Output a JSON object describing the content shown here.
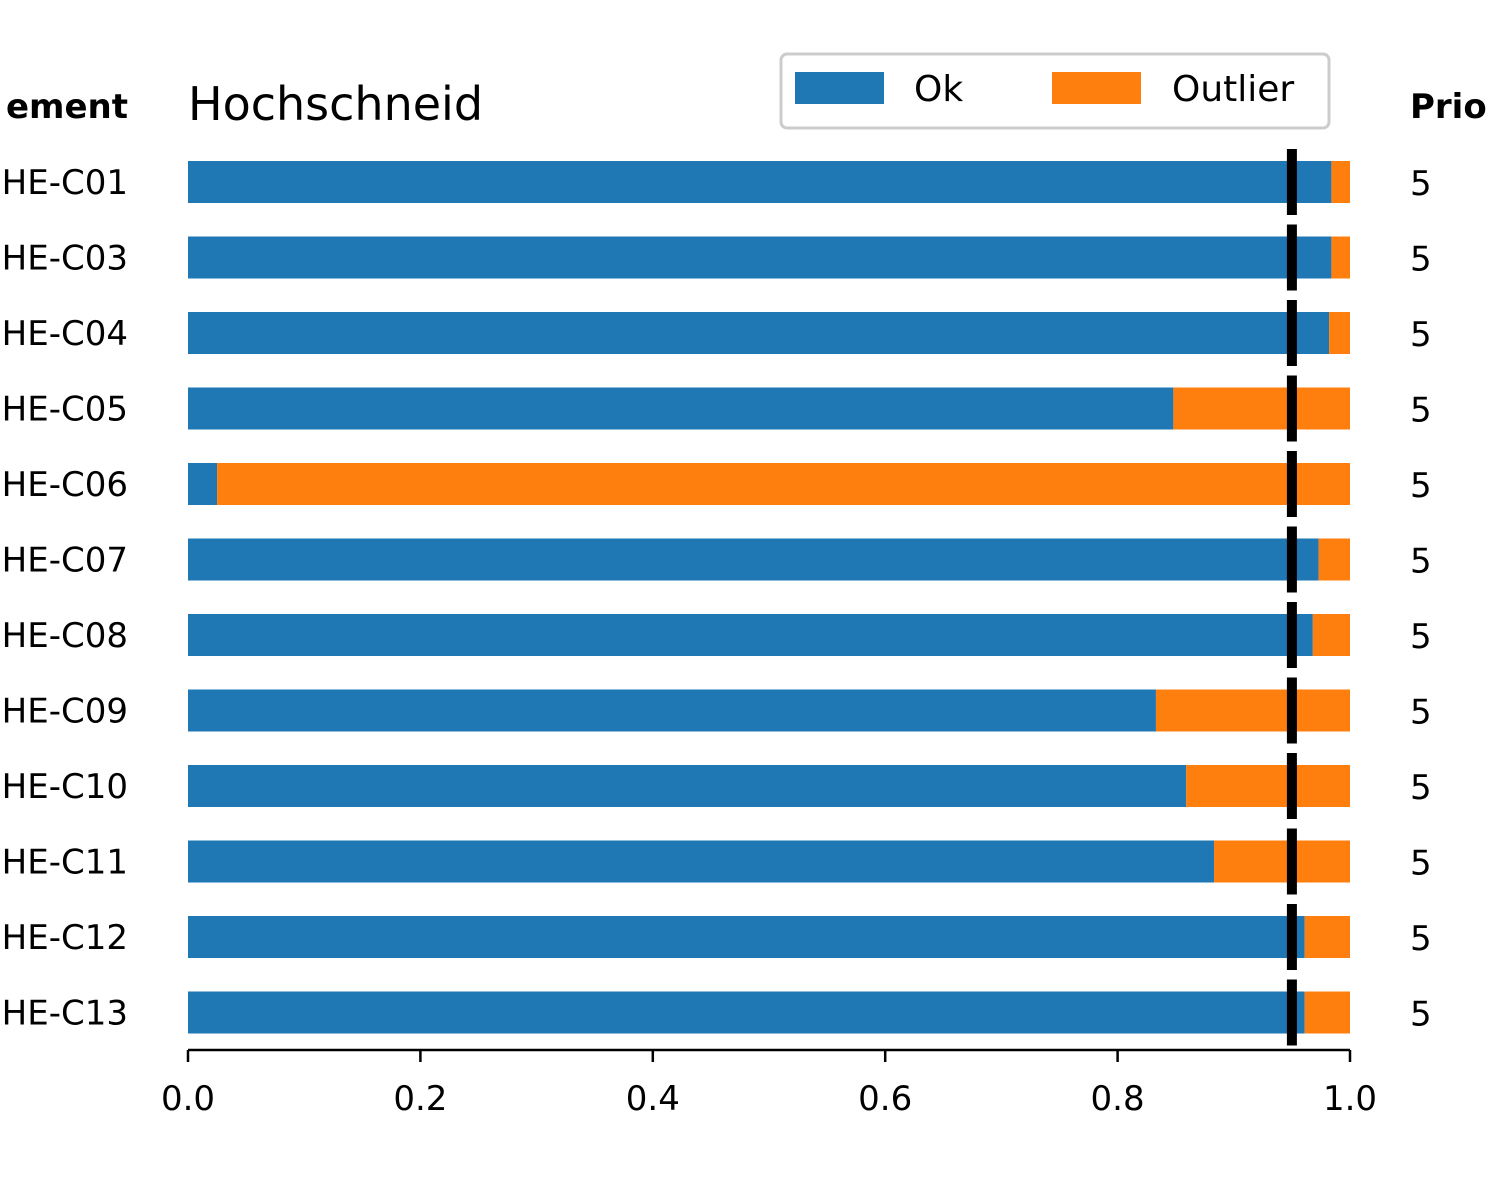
{
  "chart_data": {
    "type": "bar",
    "orientation": "horizontal",
    "stacked": true,
    "title": "Hochschneid",
    "left_column_header": "ement",
    "right_column_header": "Prio",
    "categories": [
      "HE-C01",
      "HE-C03",
      "HE-C04",
      "HE-C05",
      "HE-C06",
      "HE-C07",
      "HE-C08",
      "HE-C09",
      "HE-C10",
      "HE-C11",
      "HE-C12",
      "HE-C13"
    ],
    "priorities": [
      "5",
      "5",
      "5",
      "5",
      "5",
      "5",
      "5",
      "5",
      "5",
      "5",
      "5",
      "5"
    ],
    "series": [
      {
        "name": "Ok",
        "color": "#1f77b4",
        "values": [
          0.984,
          0.984,
          0.982,
          0.848,
          0.025,
          0.973,
          0.968,
          0.833,
          0.859,
          0.883,
          0.961,
          0.961
        ]
      },
      {
        "name": "Outlier",
        "color": "#ff7f0e",
        "values": [
          0.016,
          0.016,
          0.018,
          0.152,
          0.975,
          0.027,
          0.032,
          0.167,
          0.141,
          0.117,
          0.039,
          0.039
        ]
      }
    ],
    "threshold": 0.95,
    "threshold_color": "#000000",
    "xlim": [
      0.0,
      1.0
    ],
    "xticks": [
      "0.0",
      "0.2",
      "0.4",
      "0.6",
      "0.8",
      "1.0"
    ],
    "legend_position": "top-right",
    "grid": false
  }
}
